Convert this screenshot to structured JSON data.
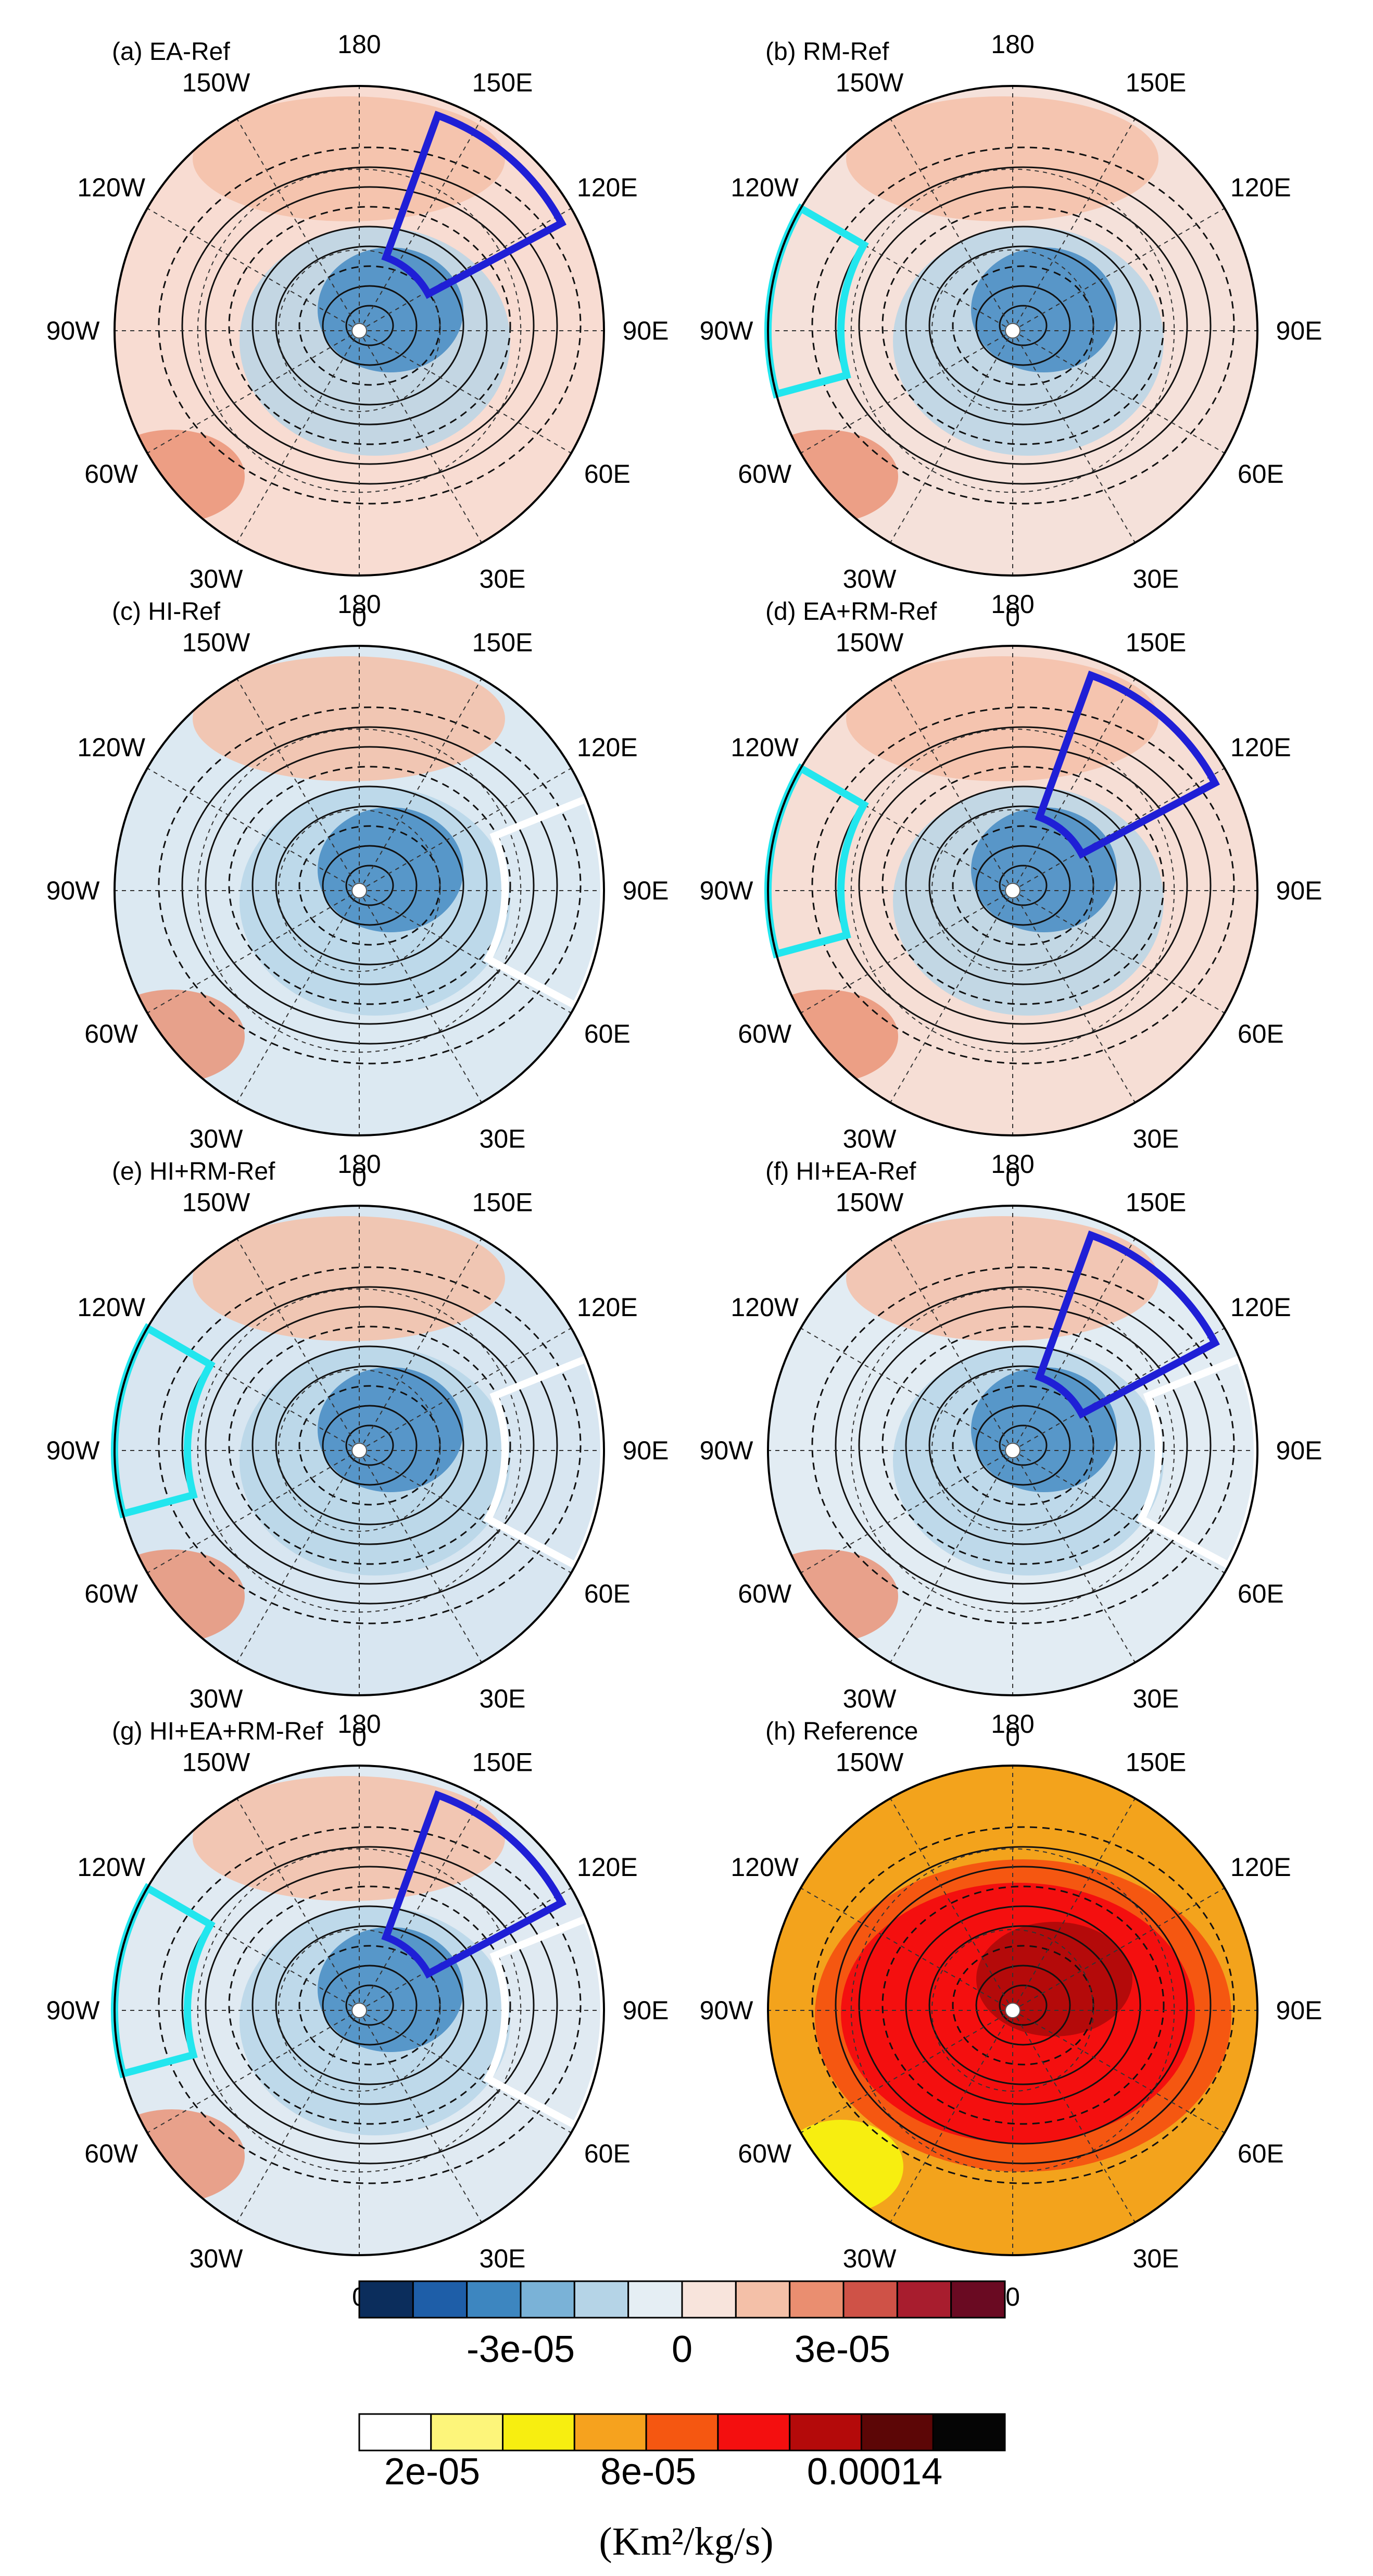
{
  "panels": [
    {
      "title": "(a) EA-Ref",
      "kind": "anom",
      "base": "#f8dcd2",
      "boxes": [
        "ea"
      ]
    },
    {
      "title": "(b) RM-Ref",
      "kind": "anom",
      "base": "#f5e1da",
      "boxes": [
        "rm"
      ]
    },
    {
      "title": "(c) HI-Ref",
      "kind": "anom",
      "base": "#dce9f2",
      "boxes": [
        "hi"
      ]
    },
    {
      "title": "(d) EA+RM-Ref",
      "kind": "anom",
      "base": "#f6ded5",
      "boxes": [
        "rm",
        "ea"
      ]
    },
    {
      "title": "(e) HI+RM-Ref",
      "kind": "anom",
      "base": "#d8e6f1",
      "boxes": [
        "rm",
        "hi"
      ]
    },
    {
      "title": "(f) HI+EA-Ref",
      "kind": "anom",
      "base": "#e2ecf3",
      "boxes": [
        "ea",
        "hi"
      ]
    },
    {
      "title": "(g) HI+EA+RM-Ref",
      "kind": "anom",
      "base": "#e0eaf2",
      "boxes": [
        "rm",
        "ea",
        "hi"
      ]
    },
    {
      "title": "(h) Reference",
      "kind": "ref",
      "base": "#f3a31c",
      "boxes": []
    }
  ],
  "lon_labels": [
    "180",
    "150E",
    "120E",
    "90E",
    "60E",
    "30E",
    "0",
    "30W",
    "60W",
    "90W",
    "120W",
    "150W"
  ],
  "box_colors": {
    "ea": "#1f1fd6",
    "rm": "#22e6ee",
    "hi": "#ffffff"
  },
  "colorbar_anomaly": {
    "colors": [
      "#0b2d5c",
      "#1e5ea8",
      "#3d86c0",
      "#7ab2d7",
      "#b5d4e7",
      "#e5eef4",
      "#f8e4dc",
      "#f4c0a8",
      "#ea8e70",
      "#cf5247",
      "#a81d2e",
      "#6a0a22"
    ],
    "labels": [
      "-3e-05",
      "0",
      "3e-05"
    ]
  },
  "colorbar_reference": {
    "colors": [
      "#ffffff",
      "#fdf57a",
      "#f7ee10",
      "#f6a21e",
      "#f55711",
      "#f40f0f",
      "#b40a0a",
      "#5c0606",
      "#050505"
    ],
    "labels": [
      "2e-05",
      "8e-05",
      "0.00014"
    ]
  },
  "unit": "(Km²/kg/s)"
}
